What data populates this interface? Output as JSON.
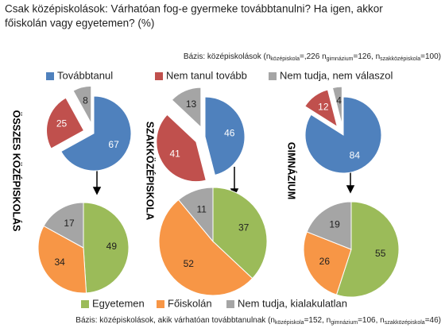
{
  "title_lines": [
    "Csak középiskolások: Várhatóan fog-e gyermeke továbbtanulni? Ha igen, akkor",
    "főiskolán vagy egyetemen? (%)"
  ],
  "base_top": [
    "Bázis: középiskolások (n",
    "középiskola",
    "=,226 n",
    "gimnázium",
    "=126, n",
    "szakközépiskola",
    "=100)"
  ],
  "base_bottom": [
    "Bázis: középiskolások, akik várhatóan továbbtanulnak (n",
    "középiskola",
    "=152, n",
    "gimnázium",
    "=106, n",
    "szakközépiskola",
    "=46)"
  ],
  "chart_data": [
    {
      "type": "pie",
      "title": "ÖSSZES KÖZÉPISKOLÁS",
      "categories": [
        "Továbbtanul",
        "Nem tanul tovább",
        "Nem tudja, nem válaszol"
      ],
      "values": [
        67,
        25,
        8
      ],
      "colors": [
        "#4f81bd",
        "#c0504d",
        "#a5a5a5"
      ],
      "exploded": true
    },
    {
      "type": "pie",
      "title": "SZAKKÖZÉPISKOLA",
      "categories": [
        "Továbbtanul",
        "Nem tanul tovább",
        "Nem tudja, nem válaszol"
      ],
      "values": [
        46,
        41,
        13
      ],
      "colors": [
        "#4f81bd",
        "#c0504d",
        "#a5a5a5"
      ],
      "exploded": true
    },
    {
      "type": "pie",
      "title": "GIMNÁZIUM",
      "categories": [
        "Továbbtanul",
        "Nem tanul tovább",
        "Nem tudja, nem válaszol"
      ],
      "values": [
        84,
        12,
        4
      ],
      "colors": [
        "#4f81bd",
        "#c0504d",
        "#a5a5a5"
      ],
      "exploded": true
    },
    {
      "type": "pie",
      "categories": [
        "Egyetemen",
        "Főiskolán",
        "Nem tudja, kialakulatlan"
      ],
      "values": [
        49,
        34,
        17
      ],
      "colors": [
        "#9bbb59",
        "#f79646",
        "#a5a5a5"
      ],
      "exploded": false
    },
    {
      "type": "pie",
      "categories": [
        "Egyetemen",
        "Főiskolán",
        "Nem tudja, kialakulatlan"
      ],
      "values": [
        37,
        52,
        11
      ],
      "colors": [
        "#9bbb59",
        "#f79646",
        "#a5a5a5"
      ],
      "exploded": false
    },
    {
      "type": "pie",
      "categories": [
        "Egyetemen",
        "Főiskolán",
        "Nem tudja, kialakulatlan"
      ],
      "values": [
        55,
        26,
        19
      ],
      "colors": [
        "#9bbb59",
        "#f79646",
        "#a5a5a5"
      ],
      "exploded": false
    }
  ]
}
